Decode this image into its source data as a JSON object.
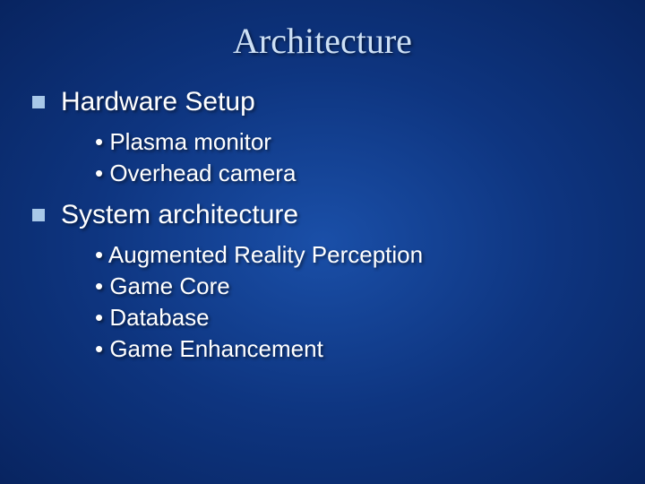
{
  "slide": {
    "title": "Architecture",
    "background_gradient": {
      "center": "#1a4fa8",
      "mid": "#0e3580",
      "edge": "#082460"
    },
    "title_color": "#cde0f5",
    "title_fontsize": 40,
    "title_font": "Times New Roman",
    "body_color": "#ffffff",
    "body_font": "Verdana",
    "section_title_fontsize": 30,
    "sub_item_fontsize": 26,
    "square_bullet_color": "#a8c8e8",
    "square_bullet_size": 14,
    "sections": [
      {
        "title": "Hardware Setup",
        "items": [
          "• Plasma monitor",
          "• Overhead camera"
        ]
      },
      {
        "title": "System architecture",
        "items": [
          "• Augmented Reality Perception",
          "• Game Core",
          "• Database",
          "• Game Enhancement"
        ]
      }
    ]
  }
}
